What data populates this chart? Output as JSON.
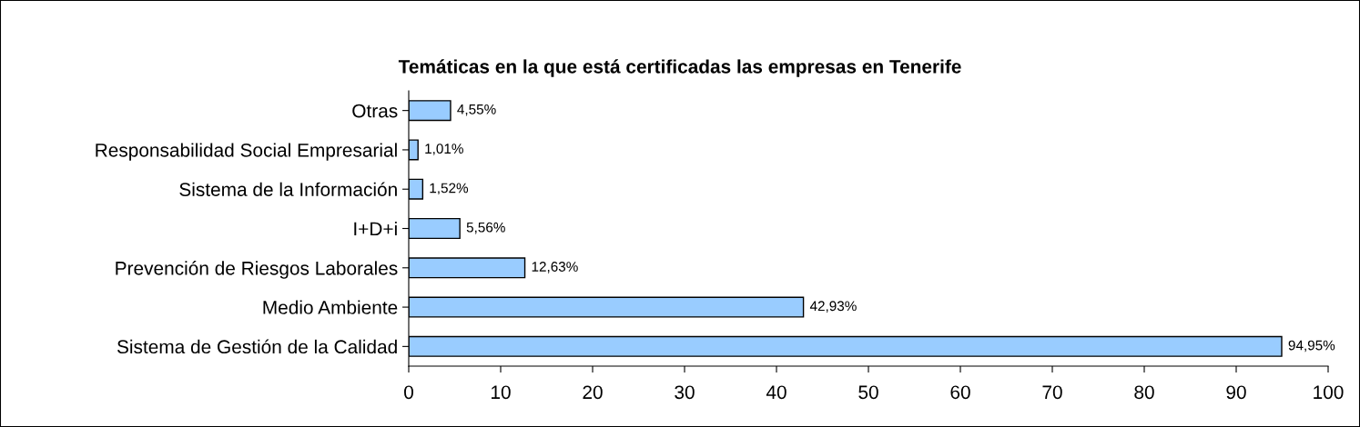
{
  "chart_data": {
    "type": "bar",
    "orientation": "horizontal",
    "title": "Temáticas en la que está certificadas las empresas en Tenerife",
    "categories": [
      "Otras",
      "Responsabilidad Social Empresarial",
      "Sistema de la Información",
      "I+D+i",
      "Prevención de Riesgos Laborales",
      "Medio Ambiente",
      "Sistema de Gestión de la Calidad"
    ],
    "values": [
      4.55,
      1.01,
      1.52,
      5.56,
      12.63,
      42.93,
      94.95
    ],
    "value_labels": [
      "4,55%",
      "1,01%",
      "1,52%",
      "5,56%",
      "12,63%",
      "42,93%",
      "94,95%"
    ],
    "color": "#99ccff",
    "xlim": [
      0,
      100
    ],
    "xticks": [
      0,
      10,
      20,
      30,
      40,
      50,
      60,
      70,
      80,
      90,
      100
    ],
    "grid": false,
    "legend": false
  }
}
